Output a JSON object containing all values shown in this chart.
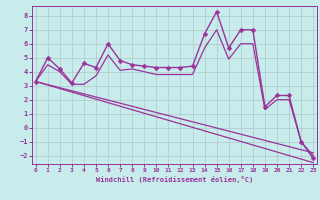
{
  "xlabel": "Windchill (Refroidissement éolien,°C)",
  "bg_color": "#c8ecec",
  "grid_color": "#b0c8c8",
  "line_color": "#993399",
  "x_ticks": [
    0,
    1,
    2,
    3,
    4,
    5,
    6,
    7,
    8,
    9,
    10,
    11,
    12,
    13,
    14,
    15,
    16,
    17,
    18,
    19,
    20,
    21,
    22,
    23
  ],
  "y_ticks": [
    -2,
    -1,
    0,
    1,
    2,
    3,
    4,
    5,
    6,
    7,
    8
  ],
  "xlim": [
    -0.3,
    23.3
  ],
  "ylim": [
    -2.6,
    8.7
  ],
  "series": [
    {
      "x": [
        0,
        1,
        2,
        3,
        4,
        5,
        6,
        7,
        8,
        9,
        10,
        11,
        12,
        13,
        14,
        15,
        16,
        17,
        18,
        19,
        20,
        21,
        22,
        23
      ],
      "y": [
        3.3,
        5.0,
        4.2,
        3.2,
        4.6,
        4.3,
        6.0,
        4.8,
        4.5,
        4.4,
        4.3,
        4.3,
        4.3,
        4.4,
        6.7,
        8.3,
        5.7,
        7.0,
        7.0,
        1.5,
        2.3,
        2.3,
        -1.0,
        -2.2
      ],
      "has_marker": true,
      "markersize": 2.5,
      "linewidth": 1.0
    },
    {
      "x": [
        0,
        1,
        2,
        3,
        4,
        5,
        6,
        7,
        8,
        9,
        10,
        11,
        12,
        13,
        14,
        15,
        16,
        17,
        18,
        19,
        20,
        21,
        22,
        23
      ],
      "y": [
        3.3,
        4.5,
        4.0,
        3.1,
        3.1,
        3.7,
        5.2,
        4.1,
        4.2,
        4.0,
        3.8,
        3.8,
        3.8,
        3.8,
        5.7,
        7.0,
        4.9,
        6.0,
        6.0,
        1.3,
        2.0,
        2.0,
        -1.0,
        -2.0
      ],
      "has_marker": false,
      "markersize": 0,
      "linewidth": 0.9
    },
    {
      "x": [
        0,
        23
      ],
      "y": [
        3.3,
        -2.5
      ],
      "has_marker": false,
      "markersize": 0,
      "linewidth": 0.9
    },
    {
      "x": [
        0,
        23
      ],
      "y": [
        3.3,
        -1.8
      ],
      "has_marker": false,
      "markersize": 0,
      "linewidth": 0.9
    }
  ]
}
